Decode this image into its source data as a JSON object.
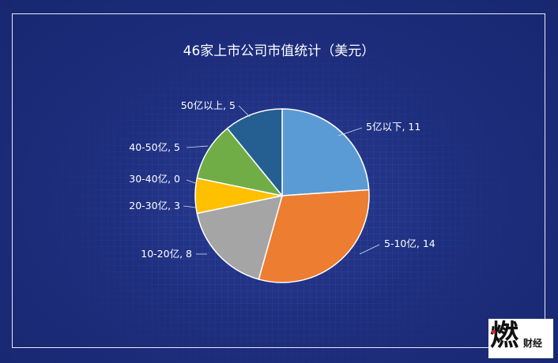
{
  "chart_data": {
    "type": "pie",
    "title": "46家上市公司市值统计（美元）",
    "categories": [
      "5亿以下",
      "5-10亿",
      "10-20亿",
      "20-30亿",
      "30-40亿",
      "40-50亿",
      "50亿以上"
    ],
    "values": [
      11,
      14,
      8,
      3,
      0,
      5,
      5
    ],
    "labels": [
      "5亿以下, 11",
      "5-10亿, 14",
      "10-20亿, 8",
      "20-30亿, 3",
      "30-40亿, 0",
      "40-50亿, 5",
      "50亿以上, 5"
    ],
    "colors": [
      "#5b9bd5",
      "#ed7d31",
      "#a5a5a5",
      "#ffc000",
      "#4472c4",
      "#70ad47",
      "#255e91"
    ],
    "start_angle": "12 o'clock",
    "direction": "clockwise",
    "legend": "none"
  },
  "watermark": {
    "mark": "燃",
    "text": "财经"
  }
}
